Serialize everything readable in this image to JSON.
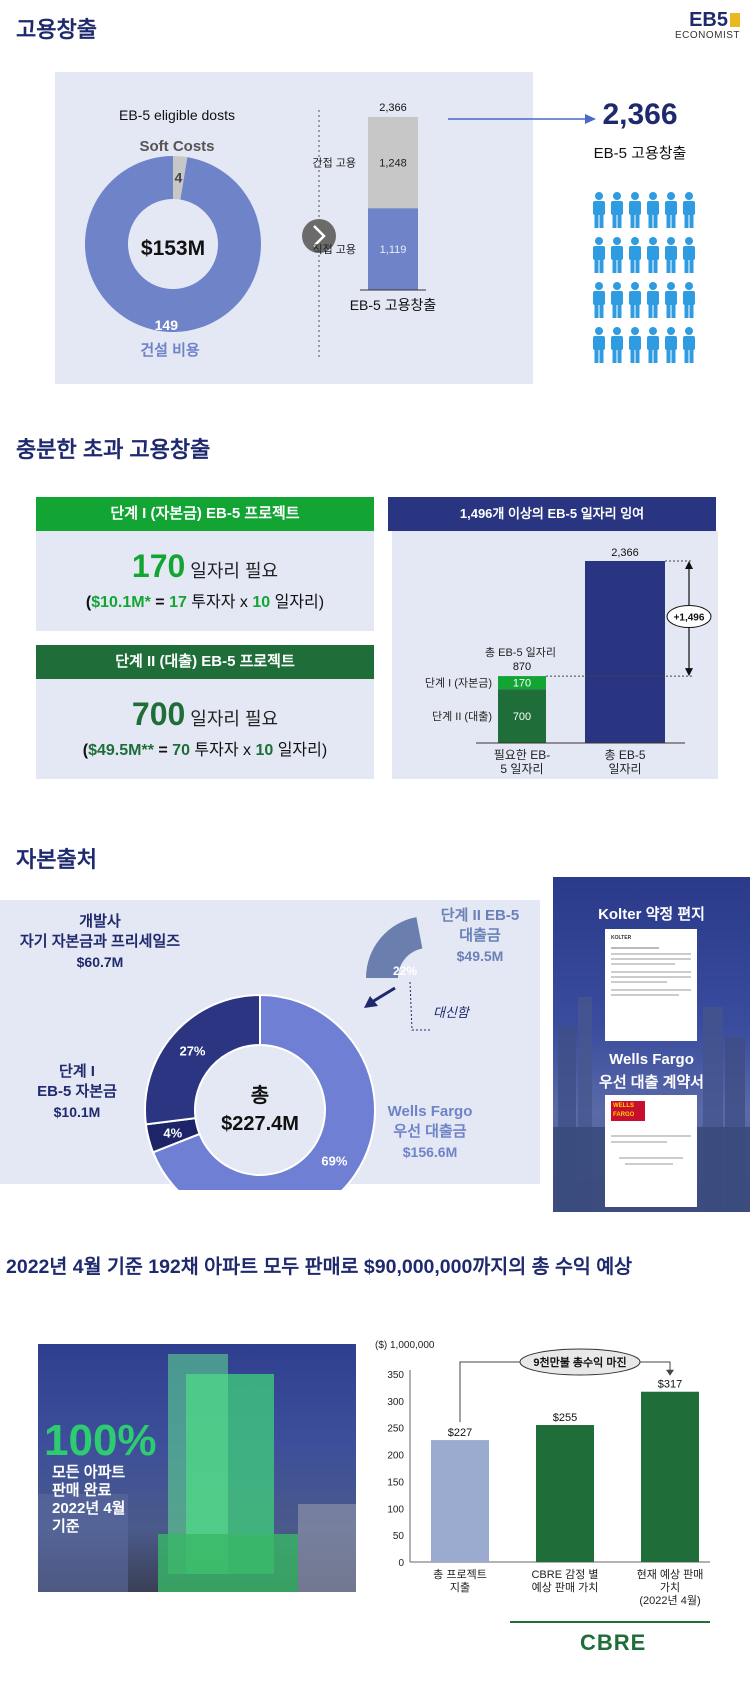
{
  "brand": {
    "logo_top": "EB5",
    "logo_bottom": "ECONOMIST"
  },
  "sec1": {
    "title": "고용창출",
    "donut_title": "EB-5 eligible dosts",
    "soft_label": "Soft Costs",
    "center": "$153M",
    "construction_label": "건설 비용",
    "result_value": "2,366",
    "result_label": "EB-5 고용창출",
    "colors": {
      "blue": "#6f83c9",
      "gray": "#c7c7c7",
      "person": "#2f9be0"
    }
  },
  "sec2": {
    "title": "충분한 초과 고용창출",
    "phase1_header": "단계 I (자본금) EB-5 프로젝트",
    "phase1_big": "170",
    "phase1_big_suffix": " 일자리 필요",
    "phase1_formula_a": "$10.1M*",
    "phase1_formula_b": " = ",
    "phase1_formula_c": "17",
    "phase1_formula_d": " 투자자 x ",
    "phase1_formula_e": "10",
    "phase1_formula_f": " 일자리)",
    "phase2_header": "단계 II (대출) EB-5 프로젝트",
    "phase2_big": "700",
    "phase2_big_suffix": " 일자리 필요",
    "phase2_formula_a": "$49.5M**",
    "phase2_formula_b": " = ",
    "phase2_formula_c": "70",
    "phase2_formula_d": " 투자자 x ",
    "phase2_formula_e": "10",
    "phase2_formula_f": " 일자리)",
    "right_header": "1,496개 이상의 EB-5 일자리 잉여",
    "total_jobs_label": "총 EB-5 일자리",
    "surplus": "+1,496"
  },
  "sec3": {
    "title": "자본출처",
    "center_line1": "총",
    "center_line2": "$227.4M",
    "dev_label": [
      "개발사",
      "자기 자본금과 프리세일즈",
      "$60.7M"
    ],
    "phase1_label": [
      "단계 I",
      "EB-5 자본금",
      "$10.1M"
    ],
    "wf_label": [
      "Wells Fargo",
      "우선 대출금",
      "$156.6M"
    ],
    "phase2_label": [
      "단계 II EB-5",
      "대출금",
      "$49.5M"
    ],
    "refinance": "대신함",
    "inset_pct": "22%",
    "kolter": "Kolter 약정 편지",
    "wells_line1": "Wells Fargo",
    "wells_line2": "우선 대출 계약서",
    "kolter_logo": "KOLTER",
    "wf_logo_line1": "WELLS",
    "wf_logo_line2": "FARGO"
  },
  "sec4": {
    "title": "2022년 4월 기준 192채 아파트 모두 판매로 $90,000,000까지의 총 수익 예상",
    "pct": "100%",
    "photo_caption": [
      "모든 아파트",
      "판매 완료",
      "2022년 4월",
      "기준"
    ],
    "margin_label": "9천만불 총수익 마진",
    "cbre": "CBRE"
  },
  "chart_data": [
    {
      "type": "pie",
      "title": "EB-5 eligible dosts",
      "categories": [
        "Soft Costs",
        "건설 비용"
      ],
      "values": [
        4,
        149
      ],
      "center_label": "$153M"
    },
    {
      "type": "bar",
      "title": "",
      "categories": [
        "EB-5 고용창출"
      ],
      "series": [
        {
          "name": "직접 고용",
          "values": [
            1119
          ]
        },
        {
          "name": "간접 고용",
          "values": [
            1248
          ]
        }
      ],
      "total": 2366,
      "xlabel": "EB-5 고용창출"
    },
    {
      "type": "bar",
      "title": "1,496개 이상의 EB-5 일자리 잉여",
      "categories": [
        "필요한 EB-5 일자리",
        "총 EB-5 일자리"
      ],
      "series": [
        {
          "name": "단계 II (대출)",
          "values": [
            700,
            0
          ]
        },
        {
          "name": "단계 I (자본금)",
          "values": [
            170,
            0
          ]
        },
        {
          "name": "총 EB-5 일자리",
          "values": [
            0,
            2366
          ]
        }
      ],
      "totals": [
        870,
        2366
      ],
      "surplus": 1496
    },
    {
      "type": "pie",
      "title": "",
      "categories": [
        "Wells Fargo 우선 대출금",
        "단계 I EB-5 자본금",
        "개발사 자기 자본금과 프리세일즈"
      ],
      "values": [
        69,
        4,
        27
      ],
      "labels": [
        "69%",
        "4%",
        "27%"
      ],
      "center_label": "총 $227.4M"
    },
    {
      "type": "bar",
      "title": "",
      "ylabel": "($) 1,000,000",
      "categories": [
        "총 프로젝트 지출",
        "CBRE 감정 별 예상 판매 가치",
        "현재 예상 판매 가치 (2022년 4월)"
      ],
      "category_lines": [
        [
          "총 프로젝트",
          "지출"
        ],
        [
          "CBRE 감정 별",
          "예상 판매 가치"
        ],
        [
          "현재 예상 판매",
          "가치",
          "(2022년 4월)"
        ]
      ],
      "values": [
        227,
        255,
        317
      ],
      "labels": [
        "$227",
        "$255",
        "$317"
      ],
      "ylim": [
        0,
        350
      ],
      "yticks": [
        "0",
        "50",
        "100",
        "150",
        "200",
        "250",
        "300",
        "350"
      ],
      "colors": [
        "#9aabcf",
        "#1f6e3a",
        "#1f6e3a"
      ]
    }
  ]
}
